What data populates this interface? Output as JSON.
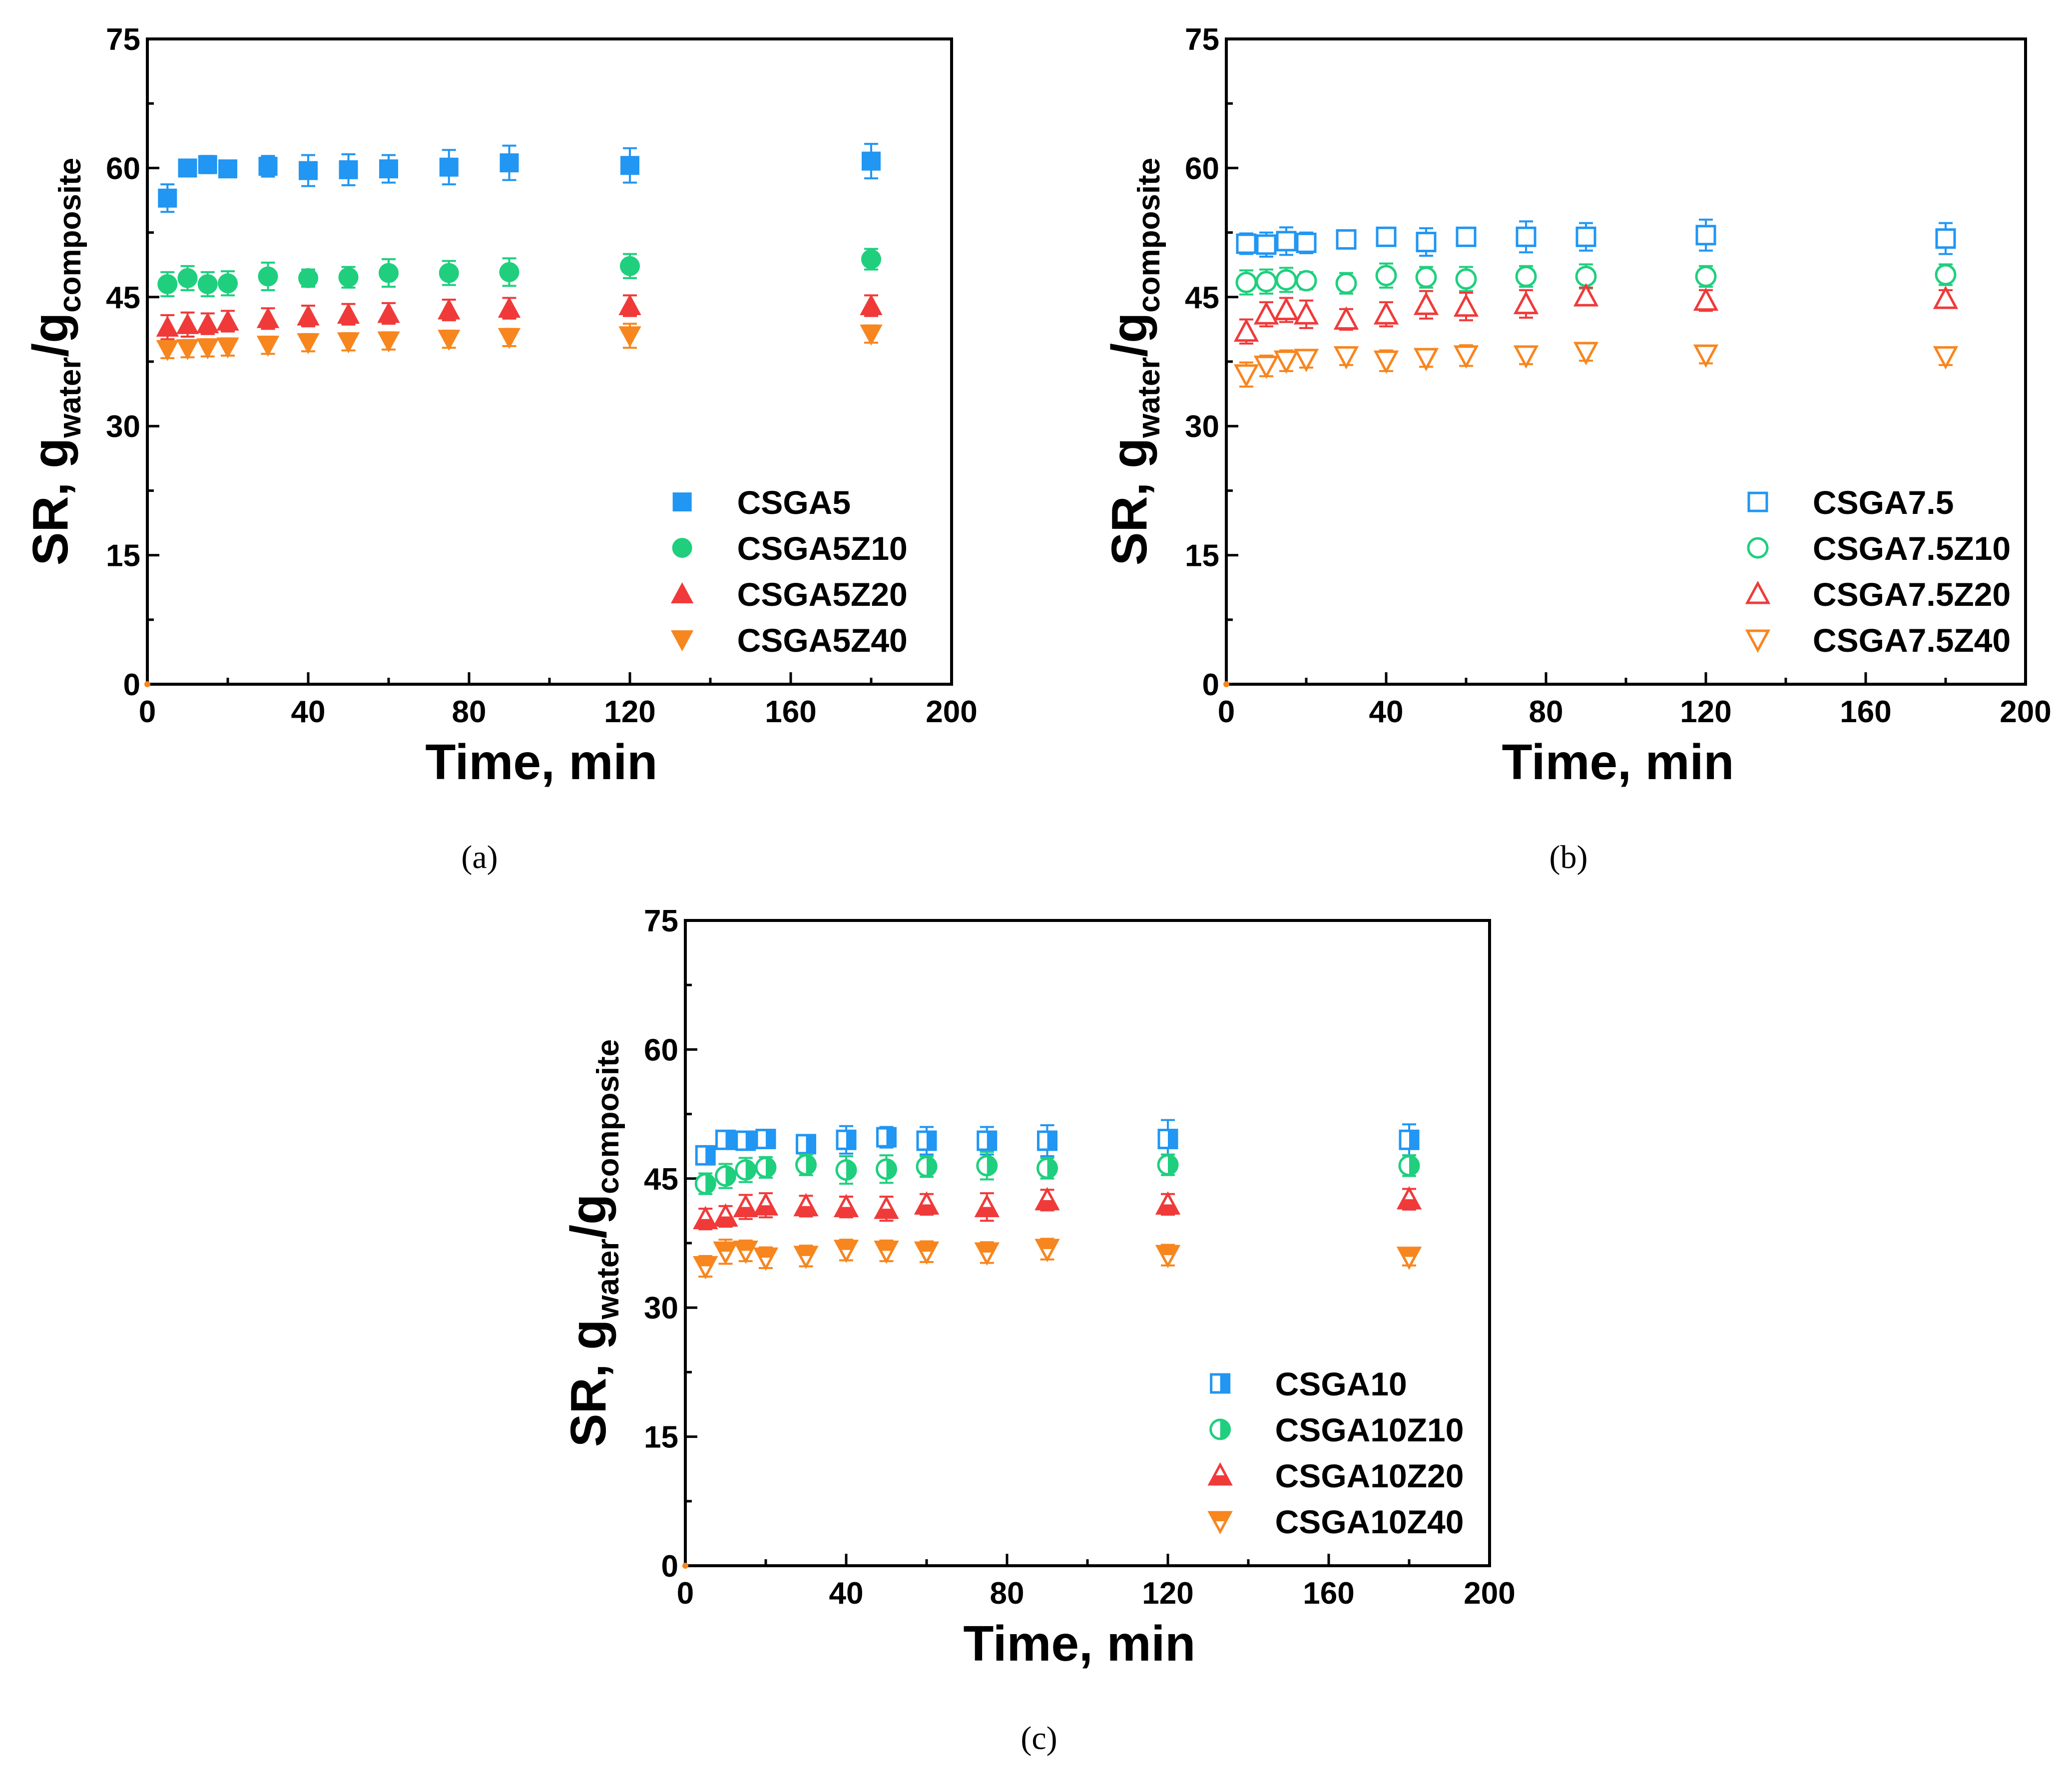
{
  "chart_data": [
    {
      "type": "scatter",
      "caption": "(a)",
      "xlabel": "Time, min",
      "ylabel": {
        "main": "SR, g",
        "sub1": "water",
        "mid": "/g",
        "sub2": "composite"
      },
      "xlim": [
        0,
        200
      ],
      "ylim": [
        0,
        75
      ],
      "xticks": [
        0,
        40,
        80,
        120,
        160,
        200
      ],
      "yticks": [
        0,
        15,
        30,
        45,
        60,
        75
      ],
      "legend_position": "bottom-right",
      "series": [
        {
          "name": "CSGA5",
          "marker": "square",
          "fill": "solid",
          "color": "#2196F3",
          "x": [
            5,
            10,
            15,
            20,
            30,
            40,
            50,
            60,
            75,
            90,
            120,
            180
          ],
          "y": [
            56.5,
            60.0,
            60.4,
            59.9,
            60.2,
            59.7,
            59.8,
            59.9,
            60.1,
            60.6,
            60.3,
            60.8
          ],
          "err": [
            1.6,
            0.8,
            1.0,
            0.6,
            1.2,
            1.8,
            1.8,
            1.6,
            2.0,
            2.0,
            2.0,
            2.0
          ]
        },
        {
          "name": "CSGA5Z10",
          "marker": "circle",
          "fill": "solid",
          "color": "#1FCF7E",
          "x": [
            5,
            10,
            15,
            20,
            30,
            40,
            50,
            60,
            75,
            90,
            120,
            180
          ],
          "y": [
            46.5,
            47.2,
            46.5,
            46.6,
            47.4,
            47.2,
            47.3,
            47.8,
            47.8,
            47.9,
            48.6,
            49.4
          ],
          "err": [
            1.4,
            1.4,
            1.4,
            1.4,
            1.6,
            1.0,
            1.2,
            1.6,
            1.4,
            1.6,
            1.4,
            1.2
          ]
        },
        {
          "name": "CSGA5Z20",
          "marker": "triangle-up",
          "fill": "solid",
          "color": "#F03A3A",
          "x": [
            5,
            10,
            15,
            20,
            30,
            40,
            50,
            60,
            75,
            90,
            120,
            180
          ],
          "y": [
            41.5,
            41.8,
            41.9,
            42.2,
            42.5,
            42.8,
            43.0,
            43.1,
            43.5,
            43.7,
            44.0,
            44.0
          ],
          "err": [
            1.4,
            1.4,
            1.2,
            1.2,
            1.2,
            1.2,
            1.2,
            1.2,
            1.2,
            1.2,
            1.2,
            1.2
          ]
        },
        {
          "name": "CSGA5Z40",
          "marker": "triangle-down",
          "fill": "solid",
          "color": "#F7861F",
          "x": [
            5,
            10,
            15,
            20,
            30,
            40,
            50,
            60,
            75,
            90,
            120,
            180
          ],
          "y": [
            38.9,
            39.0,
            39.1,
            39.2,
            39.4,
            39.7,
            39.8,
            39.9,
            40.1,
            40.3,
            40.5,
            40.7
          ],
          "err": [
            1.0,
            1.0,
            1.0,
            1.0,
            1.0,
            1.0,
            1.0,
            1.0,
            1.0,
            1.0,
            1.4,
            1.0
          ]
        }
      ]
    },
    {
      "type": "scatter",
      "caption": "(b)",
      "xlabel": "Time, min",
      "ylabel": {
        "main": "SR, g",
        "sub1": "water",
        "mid": "/g",
        "sub2": "composite"
      },
      "xlim": [
        0,
        200
      ],
      "ylim": [
        0,
        75
      ],
      "xticks": [
        0,
        40,
        80,
        120,
        160,
        200
      ],
      "yticks": [
        0,
        15,
        30,
        45,
        60,
        75
      ],
      "legend_position": "bottom-right",
      "series": [
        {
          "name": "CSGA7.5",
          "marker": "square",
          "fill": "open",
          "color": "#2196F3",
          "x": [
            5,
            10,
            15,
            20,
            30,
            40,
            50,
            60,
            75,
            90,
            120,
            180
          ],
          "y": [
            51.2,
            51.1,
            51.5,
            51.3,
            51.7,
            52.0,
            51.4,
            52.0,
            52.0,
            52.0,
            52.2,
            51.8
          ],
          "err": [
            1.2,
            1.4,
            1.6,
            1.2,
            0.6,
            0.6,
            1.6,
            1.0,
            1.8,
            1.6,
            1.8,
            1.8
          ]
        },
        {
          "name": "CSGA7.5Z10",
          "marker": "circle",
          "fill": "open",
          "color": "#1FCF7E",
          "x": [
            5,
            10,
            15,
            20,
            30,
            40,
            50,
            60,
            75,
            90,
            120,
            180
          ],
          "y": [
            46.7,
            46.8,
            47.0,
            46.9,
            46.6,
            47.5,
            47.3,
            47.1,
            47.4,
            47.4,
            47.4,
            47.6
          ],
          "err": [
            1.4,
            1.4,
            1.4,
            1.0,
            1.2,
            1.4,
            1.2,
            1.4,
            1.2,
            1.4,
            1.2,
            1.2
          ]
        },
        {
          "name": "CSGA7.5Z20",
          "marker": "triangle-up",
          "fill": "open",
          "color": "#F03A3A",
          "x": [
            5,
            10,
            15,
            20,
            30,
            40,
            50,
            60,
            75,
            90,
            120,
            180
          ],
          "y": [
            41.0,
            43.0,
            43.5,
            43.0,
            42.4,
            43.0,
            44.1,
            43.9,
            44.2,
            45.1,
            44.6,
            44.8
          ],
          "err": [
            1.4,
            1.4,
            1.4,
            1.6,
            1.2,
            1.4,
            1.6,
            1.6,
            1.6,
            1.0,
            1.2,
            1.0
          ]
        },
        {
          "name": "CSGA7.5Z40",
          "marker": "triangle-down",
          "fill": "open",
          "color": "#F7861F",
          "x": [
            5,
            10,
            15,
            20,
            30,
            40,
            50,
            60,
            75,
            90,
            120,
            180
          ],
          "y": [
            36.0,
            37.0,
            37.6,
            37.8,
            38.1,
            37.6,
            37.9,
            38.2,
            38.2,
            38.6,
            38.3,
            38.1
          ],
          "err": [
            1.4,
            1.2,
            1.2,
            1.0,
            1.0,
            1.2,
            1.0,
            1.2,
            1.0,
            1.0,
            1.0,
            1.0
          ]
        }
      ]
    },
    {
      "type": "scatter",
      "caption": "(c)",
      "xlabel": "Time, min",
      "ylabel": {
        "main": "SR, g",
        "sub1": "water",
        "mid": "/g",
        "sub2": "composite"
      },
      "xlim": [
        0,
        200
      ],
      "ylim": [
        0,
        75
      ],
      "xticks": [
        0,
        40,
        80,
        120,
        160,
        200
      ],
      "yticks": [
        0,
        15,
        30,
        45,
        60,
        75
      ],
      "legend_position": "bottom-right",
      "series": [
        {
          "name": "CSGA10",
          "marker": "square",
          "fill": "half",
          "color": "#2196F3",
          "x": [
            5,
            10,
            15,
            20,
            30,
            40,
            50,
            60,
            75,
            90,
            120,
            180
          ],
          "y": [
            47.7,
            49.5,
            49.4,
            49.6,
            49.0,
            49.5,
            49.8,
            49.4,
            49.4,
            49.4,
            49.6,
            49.5
          ],
          "err": [
            1.0,
            1.0,
            0.6,
            0.6,
            0.8,
            1.6,
            1.2,
            1.6,
            1.6,
            1.8,
            2.2,
            1.8
          ]
        },
        {
          "name": "CSGA10Z10",
          "marker": "circle",
          "fill": "half",
          "color": "#1FCF7E",
          "x": [
            5,
            10,
            15,
            20,
            30,
            40,
            50,
            60,
            75,
            90,
            120,
            180
          ],
          "y": [
            44.4,
            45.3,
            46.0,
            46.3,
            46.6,
            46.0,
            46.1,
            46.4,
            46.5,
            46.2,
            46.6,
            46.5
          ],
          "err": [
            1.2,
            1.4,
            1.4,
            1.2,
            1.2,
            1.6,
            1.6,
            1.2,
            1.6,
            1.2,
            1.2,
            1.2
          ]
        },
        {
          "name": "CSGA10Z20",
          "marker": "triangle-up",
          "fill": "half",
          "color": "#F03A3A",
          "x": [
            5,
            10,
            15,
            20,
            30,
            40,
            50,
            60,
            75,
            90,
            120,
            180
          ],
          "y": [
            40.3,
            40.6,
            41.7,
            41.9,
            41.8,
            41.7,
            41.5,
            42.0,
            41.7,
            42.5,
            42.0,
            42.6
          ],
          "err": [
            1.2,
            1.2,
            1.4,
            1.4,
            1.2,
            1.2,
            1.4,
            1.2,
            1.6,
            1.2,
            1.2,
            1.2
          ]
        },
        {
          "name": "CSGA10Z40",
          "marker": "triangle-down",
          "fill": "half",
          "color": "#F7861F",
          "x": [
            5,
            10,
            15,
            20,
            30,
            40,
            50,
            60,
            75,
            90,
            120,
            180
          ],
          "y": [
            34.8,
            36.5,
            36.6,
            35.8,
            36.0,
            36.7,
            36.6,
            36.5,
            36.4,
            36.8,
            36.1,
            35.9
          ],
          "err": [
            1.2,
            1.4,
            1.2,
            1.2,
            1.2,
            1.2,
            1.2,
            1.2,
            1.2,
            1.2,
            1.2,
            1.0
          ]
        }
      ]
    }
  ]
}
